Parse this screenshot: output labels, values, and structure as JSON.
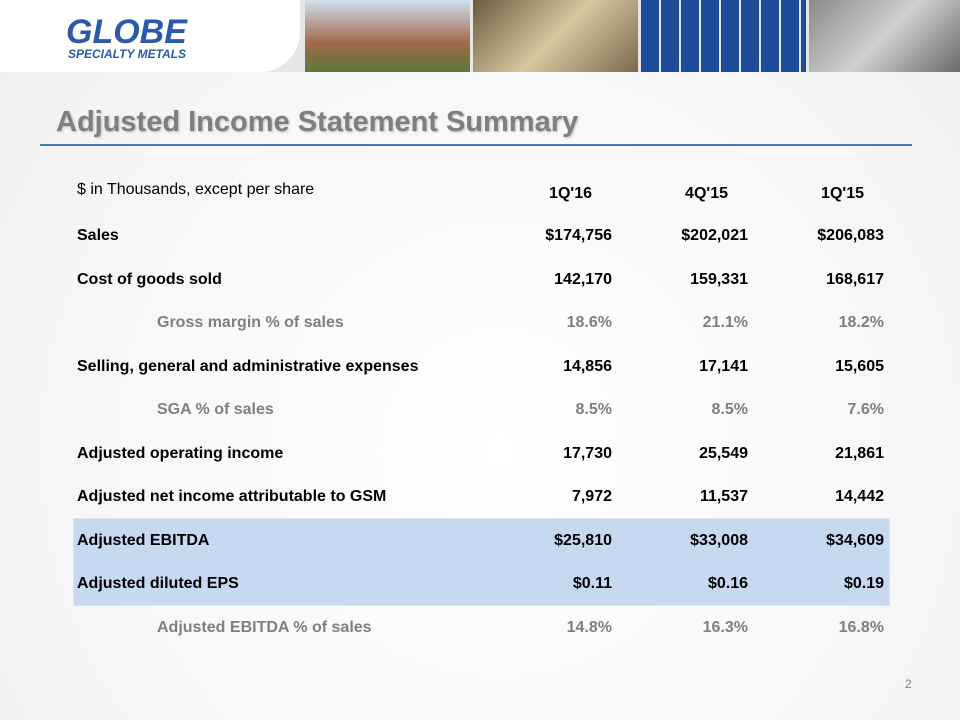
{
  "header": {
    "logo": "GLOBE",
    "logo_subtitle": "SPECIALTY METALS"
  },
  "title": "Adjusted Income Statement Summary",
  "table": {
    "columns": [
      "$ in Thousands, except per share",
      "1Q'16",
      "4Q'15",
      "1Q'15"
    ],
    "rows": [
      {
        "label": "Sales",
        "values": [
          "$174,756",
          "$202,021",
          "$206,083"
        ]
      },
      {
        "label": "Cost of goods sold",
        "values": [
          "142,170",
          "159,331",
          "168,617"
        ]
      },
      {
        "label": "Gross margin % of sales",
        "values": [
          "18.6%",
          "21.1%",
          "18.2%"
        ],
        "indent": true
      },
      {
        "label": "Selling, general and administrative expenses",
        "values": [
          "14,856",
          "17,141",
          "15,605"
        ]
      },
      {
        "label": "SGA % of sales",
        "values": [
          "8.5%",
          "8.5%",
          "7.6%"
        ],
        "indent": true
      },
      {
        "label": "Adjusted operating income",
        "values": [
          "17,730",
          "25,549",
          "21,861"
        ]
      },
      {
        "label": "Adjusted net income attributable to GSM",
        "values": [
          "7,972",
          "11,537",
          "14,442"
        ]
      },
      {
        "label": "Adjusted EBITDA",
        "values": [
          "$25,810",
          "$33,008",
          "$34,609"
        ],
        "highlight": true
      },
      {
        "label": "Adjusted diluted EPS",
        "values": [
          "$0.11",
          "$0.16",
          "$0.19"
        ],
        "highlight": true
      },
      {
        "label": "Adjusted EBITDA % of sales",
        "values": [
          "14.8%",
          "16.3%",
          "16.8%"
        ],
        "indent": true
      }
    ]
  },
  "page_number": "2"
}
